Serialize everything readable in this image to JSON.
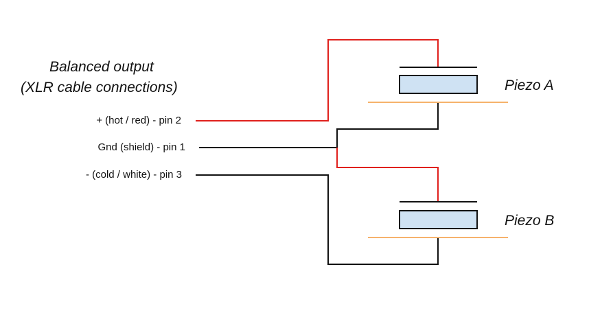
{
  "title": {
    "line1": "Balanced output",
    "line2": "(XLR cable connections)"
  },
  "pins": [
    {
      "label": "+ (hot / red) - pin 2",
      "wire_color": "#e0201c"
    },
    {
      "label": "Gnd (shield) - pin 1",
      "wire_color": "#111111"
    },
    {
      "label": "- (cold / white) - pin 3",
      "wire_color": "#111111"
    }
  ],
  "piezos": [
    {
      "label": "Piezo A"
    },
    {
      "label": "Piezo B"
    }
  ],
  "colors": {
    "hot_wire": "#e0201c",
    "ground_wire": "#111111",
    "piezo_fill": "#cfe2f3",
    "piezo_stroke": "#111111",
    "plate_line": "#f6b26b",
    "electrode_line": "#111111"
  }
}
